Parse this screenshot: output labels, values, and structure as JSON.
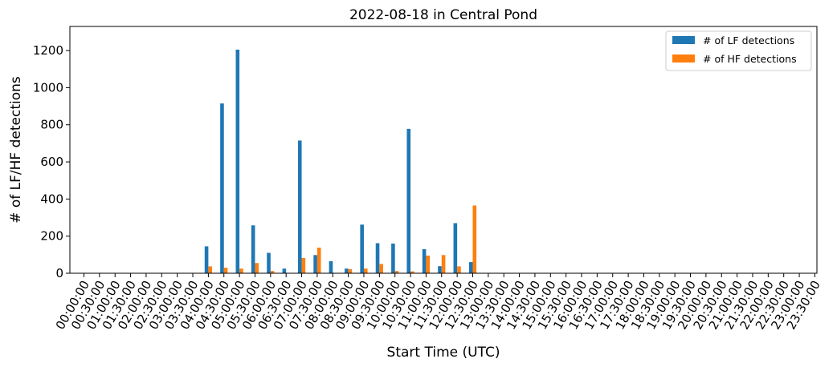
{
  "chart_data": {
    "type": "bar",
    "title": "2022-08-18 in Central Pond",
    "xlabel": "Start Time (UTC)",
    "ylabel": "# of LF/HF detections",
    "ylim": [
      0,
      1330
    ],
    "yticks": [
      0,
      200,
      400,
      600,
      800,
      1000,
      1200
    ],
    "grid": false,
    "legend_position": "top-right",
    "categories": [
      "00:00:00",
      "00:30:00",
      "01:00:00",
      "01:30:00",
      "02:00:00",
      "02:30:00",
      "03:00:00",
      "03:30:00",
      "04:00:00",
      "04:30:00",
      "05:00:00",
      "05:30:00",
      "06:00:00",
      "06:30:00",
      "07:00:00",
      "07:30:00",
      "08:00:00",
      "08:30:00",
      "09:00:00",
      "09:30:00",
      "10:00:00",
      "10:30:00",
      "11:00:00",
      "11:30:00",
      "12:00:00",
      "12:30:00",
      "13:00:00",
      "13:30:00",
      "14:00:00",
      "14:30:00",
      "15:00:00",
      "15:30:00",
      "16:00:00",
      "16:30:00",
      "17:00:00",
      "17:30:00",
      "18:00:00",
      "18:30:00",
      "19:00:00",
      "19:30:00",
      "20:00:00",
      "20:30:00",
      "21:00:00",
      "21:30:00",
      "22:00:00",
      "22:30:00",
      "23:00:00",
      "23:30:00"
    ],
    "series": [
      {
        "name": "# of LF detections",
        "color": "#1f77b4",
        "values": [
          0,
          0,
          0,
          0,
          0,
          0,
          0,
          0,
          145,
          915,
          1205,
          258,
          110,
          25,
          715,
          98,
          65,
          25,
          262,
          162,
          160,
          778,
          130,
          38,
          270,
          60,
          0,
          0,
          0,
          0,
          0,
          0,
          0,
          0,
          0,
          0,
          0,
          0,
          0,
          0,
          0,
          0,
          0,
          0,
          0,
          0,
          0,
          0
        ]
      },
      {
        "name": "# of HF detections",
        "color": "#ff7f0e",
        "values": [
          0,
          0,
          0,
          0,
          0,
          0,
          0,
          0,
          37,
          30,
          25,
          55,
          12,
          0,
          82,
          138,
          0,
          22,
          25,
          50,
          12,
          10,
          95,
          98,
          37,
          365,
          0,
          0,
          0,
          0,
          0,
          0,
          0,
          0,
          0,
          0,
          0,
          0,
          0,
          0,
          0,
          0,
          0,
          0,
          0,
          0,
          0,
          0
        ]
      }
    ]
  }
}
